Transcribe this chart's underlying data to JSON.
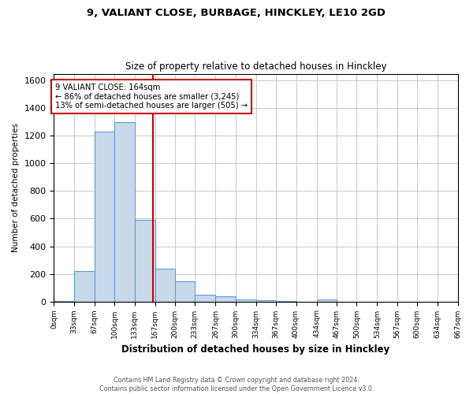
{
  "title": "9, VALIANT CLOSE, BURBAGE, HINCKLEY, LE10 2GD",
  "subtitle": "Size of property relative to detached houses in Hinckley",
  "xlabel": "Distribution of detached houses by size in Hinckley",
  "ylabel": "Number of detached properties",
  "footer_line1": "Contains HM Land Registry data © Crown copyright and database right 2024.",
  "footer_line2": "Contains public sector information licensed under the Open Government Licence v3.0.",
  "annotation_line1": "9 VALIANT CLOSE: 164sqm",
  "annotation_line2": "← 86% of detached houses are smaller (3,245)",
  "annotation_line3": "13% of semi-detached houses are larger (505) →",
  "bar_edges": [
    0,
    33,
    67,
    100,
    133,
    167,
    200,
    233,
    267,
    300,
    334,
    367,
    400,
    434,
    467,
    500,
    534,
    567,
    600,
    634,
    667
  ],
  "bar_heights": [
    5,
    220,
    1230,
    1300,
    590,
    240,
    145,
    50,
    40,
    15,
    10,
    5,
    0,
    15,
    0,
    0,
    0,
    0,
    0,
    0
  ],
  "property_line_x": 164,
  "bar_fill_color": "#c8d9eb",
  "bar_edge_color": "#5b9bd5",
  "property_line_color": "#cc0000",
  "grid_color": "#c0c0c0",
  "background_color": "#ffffff",
  "annotation_box_color": "#ffffff",
  "annotation_box_edge": "#cc0000",
  "ylim": [
    0,
    1650
  ],
  "yticks": [
    0,
    200,
    400,
    600,
    800,
    1000,
    1200,
    1400,
    1600
  ],
  "xtick_labels": [
    "0sqm",
    "33sqm",
    "67sqm",
    "100sqm",
    "133sqm",
    "167sqm",
    "200sqm",
    "233sqm",
    "267sqm",
    "300sqm",
    "334sqm",
    "367sqm",
    "400sqm",
    "434sqm",
    "467sqm",
    "500sqm",
    "534sqm",
    "567sqm",
    "600sqm",
    "634sqm",
    "667sqm"
  ]
}
